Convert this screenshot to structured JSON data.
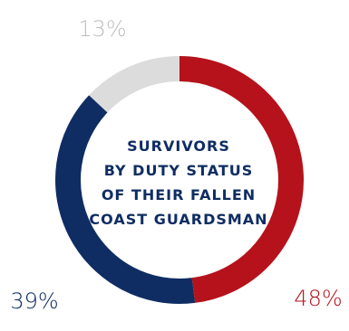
{
  "chart_data": {
    "type": "pie",
    "variant": "donut",
    "center_title_lines": [
      "SURVIVORS",
      "BY DUTY STATUS",
      "OF THEIR FALLEN",
      "COAST GUARDSMAN"
    ],
    "slices": [
      {
        "value": 48,
        "label": "48%",
        "color": "#b5121b"
      },
      {
        "value": 39,
        "label": "39%",
        "color": "#0f2d63"
      },
      {
        "value": 13,
        "label": "13%",
        "color": "#dcdcdc"
      }
    ],
    "center_text_color": "#0f2d63"
  }
}
